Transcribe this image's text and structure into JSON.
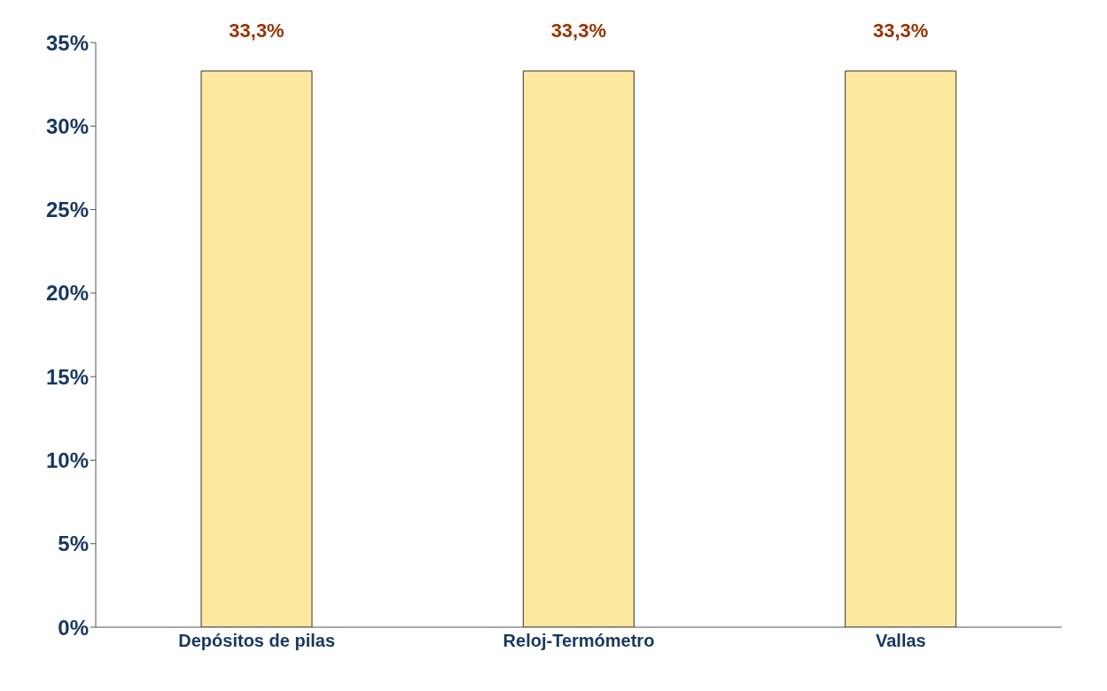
{
  "chart_data": {
    "type": "bar",
    "categories": [
      "Depósitos de pilas",
      "Reloj-Termómetro",
      "Vallas"
    ],
    "values": [
      33.3,
      33.3,
      33.3
    ],
    "value_labels": [
      "33,3%",
      "33,3%",
      "33,3%"
    ],
    "color": "#fde8a0",
    "ylim": [
      0,
      35
    ],
    "yticks": [
      {
        "value": 0,
        "label": "0%"
      },
      {
        "value": 5,
        "label": "5%"
      },
      {
        "value": 10,
        "label": "10%"
      },
      {
        "value": 15,
        "label": "15%"
      },
      {
        "value": 20,
        "label": "20%"
      },
      {
        "value": 25,
        "label": "25%"
      },
      {
        "value": 30,
        "label": "30%"
      },
      {
        "value": 35,
        "label": "35%"
      }
    ],
    "grid": false
  }
}
